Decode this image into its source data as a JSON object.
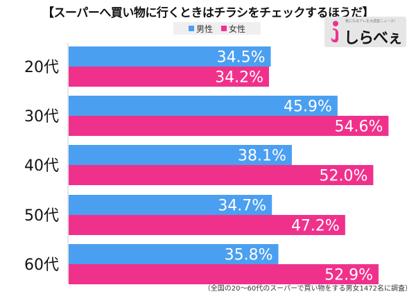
{
  "title": "【スーパーへ買い物に行くときはチラシをチェックするほうだ】",
  "legend": {
    "male": "男性",
    "female": "女性"
  },
  "logo": {
    "brand": "しらべぇ",
    "tagline": "気になるアレを大調査ニュース！"
  },
  "footnote": "（全国の20〜60代のスーパーで買い物をする男女1472名に調査）",
  "colors": {
    "male": "#4b9ff0",
    "female": "#f0318c",
    "axis": "#cccccc"
  },
  "chart_data": {
    "type": "bar",
    "orientation": "horizontal",
    "categories": [
      "20代",
      "30代",
      "40代",
      "50代",
      "60代"
    ],
    "series": [
      {
        "name": "男性",
        "values": [
          34.5,
          45.9,
          38.1,
          34.7,
          35.8
        ],
        "labels": [
          "34.5%",
          "45.9%",
          "38.1%",
          "34.7%",
          "35.8%"
        ]
      },
      {
        "name": "女性",
        "values": [
          34.2,
          54.6,
          52.0,
          47.2,
          52.9
        ],
        "labels": [
          "34.2%",
          "54.6%",
          "52.0%",
          "47.2%",
          "52.9%"
        ]
      }
    ],
    "xlim": [
      0,
      70
    ],
    "grid": false,
    "legend_position": "top-center"
  }
}
